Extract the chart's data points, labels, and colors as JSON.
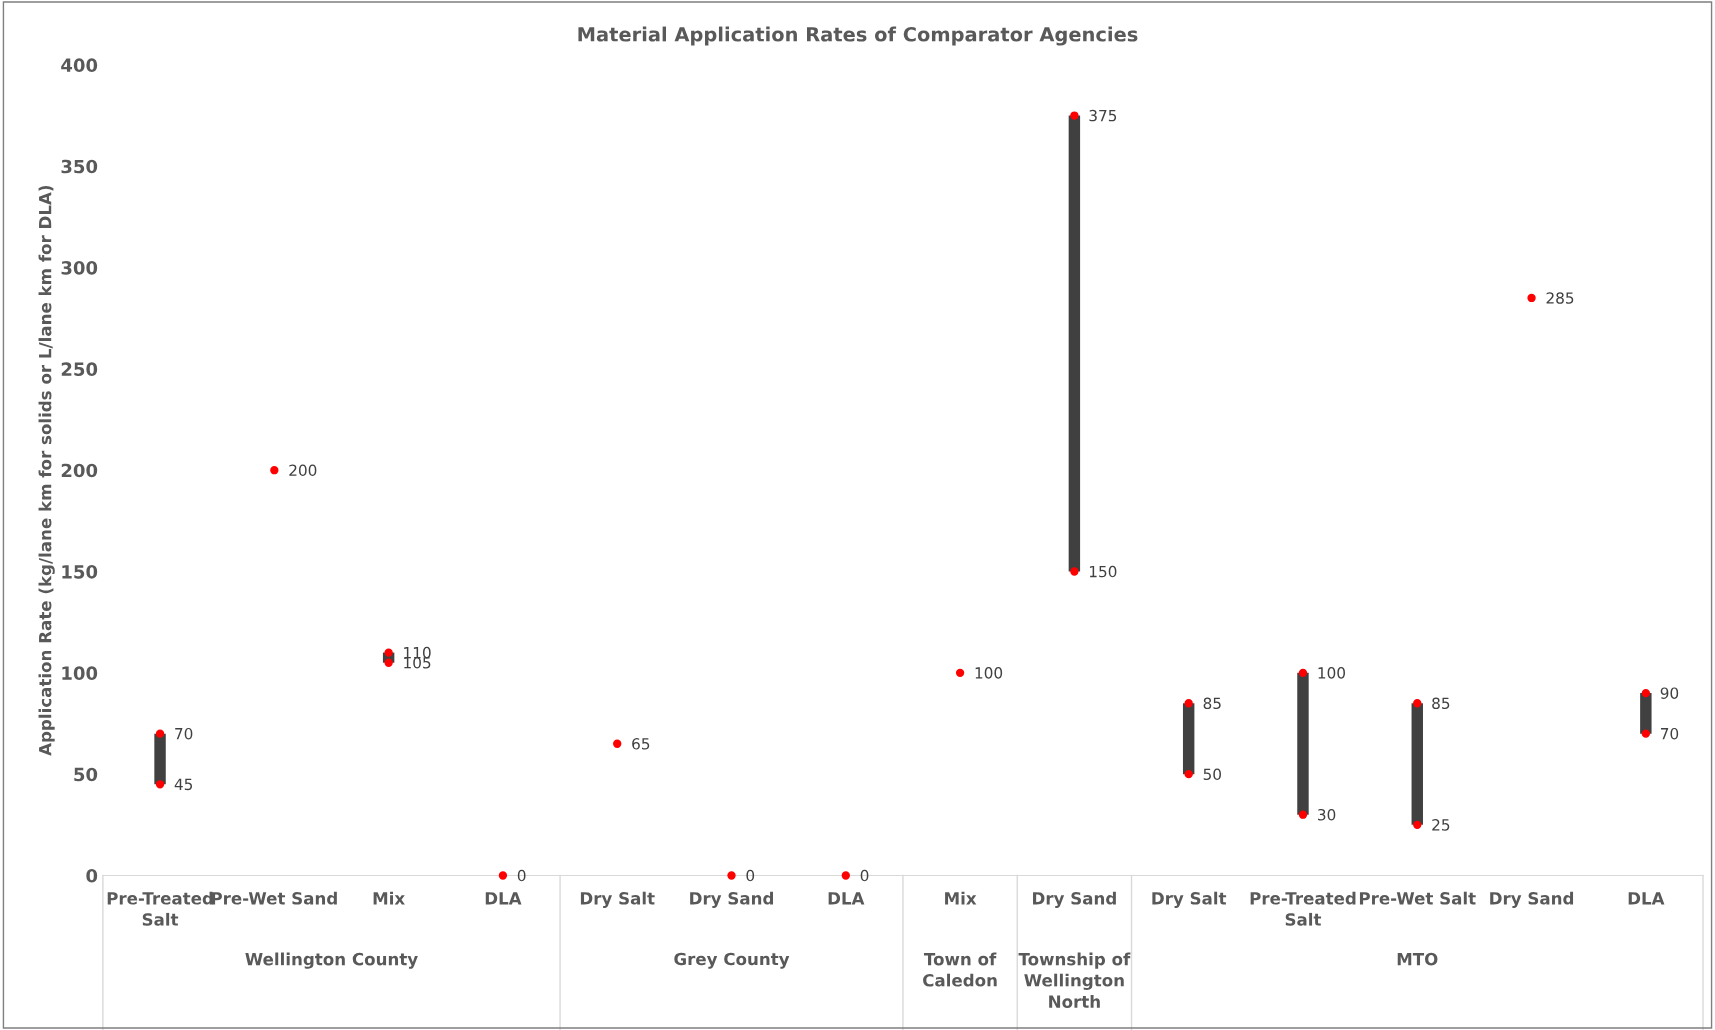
{
  "chart_data": [
    {
      "type": "bar",
      "ylabel": "Application Rate (kg/lane km for solids or L/lane km for DLA)",
      "xlabel": "Wellington County",
      "categories": [
        "Pre-Treated Salt",
        "Pre-Wet Sand",
        "Mix",
        "DLA"
      ],
      "series": [
        {
          "color": "#404040",
          "base": [
            45,
            null,
            105,
            null
          ],
          "values": [
            25,
            null,
            5,
            null
          ]
        },
        {
          "type": "scatter",
          "color": "#ff0000",
          "values": [
            45,
            200,
            105,
            0
          ],
          "data_labels": true
        },
        {
          "type": "scatter",
          "color": "#ff0000",
          "values": [
            70,
            null,
            110,
            null
          ],
          "data_labels": true
        }
      ],
      "ylim": [
        0,
        400
      ],
      "yticks": [
        0,
        50,
        100,
        150,
        200,
        250,
        300,
        350,
        400
      ],
      "marker": "circle"
    },
    {
      "type": "bar",
      "title": "Material Application Rates of Comparator Agencies",
      "xlabel": "Grey County",
      "categories": [
        "Dry Salt",
        "Dry Sand",
        "DLA"
      ],
      "series": [
        {
          "type": "scatter",
          "color": "#ff0000",
          "values": [
            65,
            0,
            0
          ],
          "data_labels": true
        }
      ],
      "ylim": [
        0,
        400
      ],
      "tick_labels": "x",
      "marker": "circle"
    },
    {
      "type": "bar",
      "xlabel": "Town of Caledon",
      "categories": [
        "Mix"
      ],
      "series": [
        {
          "type": "scatter",
          "color": "#ff0000",
          "values": [
            100
          ],
          "data_labels": true
        }
      ],
      "ylim": [
        0,
        400
      ],
      "tick_labels": "x",
      "marker": "circle"
    },
    {
      "type": "bar",
      "xlabel": "Township of Wellington North",
      "categories": [
        "Dry Sand"
      ],
      "series": [
        {
          "color": "#404040",
          "base": [
            150
          ],
          "values": [
            225
          ]
        },
        {
          "type": "scatter",
          "color": "#ff0000",
          "values": [
            150
          ],
          "data_labels": true
        },
        {
          "type": "scatter",
          "color": "#ff0000",
          "values": [
            375
          ],
          "data_labels": true
        }
      ],
      "ylim": [
        0,
        400
      ],
      "tick_labels": "x",
      "marker": "circle"
    },
    {
      "type": "bar",
      "xlabel": "MTO",
      "categories": [
        "Dry Salt",
        "Pre-Treated Salt",
        "Pre-Wet Salt",
        "Dry Sand",
        "DLA"
      ],
      "series": [
        {
          "color": "#404040",
          "base": [
            50,
            30,
            25,
            null,
            70
          ],
          "values": [
            35,
            70,
            60,
            null,
            20
          ]
        },
        {
          "type": "scatter",
          "color": "#ff0000",
          "values": [
            50,
            30,
            25,
            285,
            70
          ],
          "data_labels": true
        },
        {
          "type": "scatter",
          "color": "#ff0000",
          "values": [
            85,
            100,
            85,
            null,
            90
          ],
          "data_labels": true
        }
      ],
      "ylim": [
        0,
        400
      ],
      "tick_labels": "x",
      "marker": "circle"
    }
  ]
}
